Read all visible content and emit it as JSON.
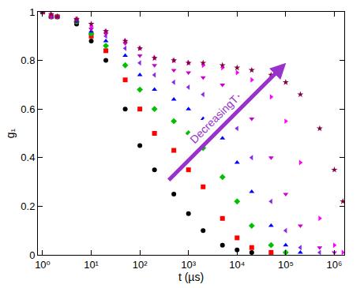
{
  "chart_data": {
    "type": "scatter",
    "log": "x",
    "grid": false,
    "x_label": "t (µs)",
    "y_label": "g₁",
    "annotations": [
      "DecreasingT"
    ],
    "xlim": [
      0.8,
      1600000
    ],
    "ylim": [
      0,
      1
    ],
    "xticks": [
      {
        "value": 1,
        "label": "10⁰"
      },
      {
        "value": 10,
        "label": "10¹"
      },
      {
        "value": 100,
        "label": "10²"
      },
      {
        "value": 1000,
        "label": "10³"
      },
      {
        "value": 10000,
        "label": "10⁴"
      },
      {
        "value": 100000,
        "label": "10⁵"
      },
      {
        "value": 1000000,
        "label": "10⁶"
      }
    ],
    "yticks": [
      0,
      0.2,
      0.4,
      0.6,
      0.8,
      1
    ],
    "x": [
      1,
      1.5,
      2,
      5,
      10,
      20,
      50,
      100,
      200,
      500,
      1000,
      2000,
      5000,
      10000,
      20000,
      50000,
      100000,
      200000,
      500000,
      1000000,
      1500000
    ],
    "series": [
      {
        "color": "#000000",
        "marker": "circle",
        "values": [
          1,
          0.98,
          0.98,
          0.95,
          0.88,
          0.8,
          0.6,
          0.45,
          0.35,
          0.25,
          0.17,
          0.1,
          0.04,
          0.02,
          0.01,
          null,
          null,
          null,
          null,
          null,
          null
        ]
      },
      {
        "color": "#ff0000",
        "marker": "square",
        "values": [
          1,
          0.98,
          0.98,
          0.96,
          0.9,
          0.84,
          0.72,
          0.6,
          0.5,
          0.43,
          0.35,
          0.28,
          0.15,
          0.07,
          0.03,
          0.01,
          null,
          null,
          null,
          null,
          null
        ]
      },
      {
        "color": "#00c000",
        "marker": "diamond",
        "values": [
          1,
          0.98,
          0.98,
          0.96,
          0.91,
          0.86,
          0.78,
          0.68,
          0.6,
          0.55,
          0.5,
          0.44,
          0.32,
          0.22,
          0.12,
          0.04,
          0.01,
          null,
          null,
          null,
          null
        ]
      },
      {
        "color": "#0000ff",
        "marker": "triangle-up",
        "values": [
          1,
          0.98,
          0.98,
          0.96,
          0.92,
          0.88,
          0.82,
          0.74,
          0.68,
          0.64,
          0.6,
          0.56,
          0.48,
          0.38,
          0.26,
          0.12,
          0.04,
          0.01,
          null,
          null,
          null
        ]
      },
      {
        "color": "#8a2be2",
        "marker": "triangle-left",
        "values": [
          1,
          0.98,
          0.98,
          0.97,
          0.93,
          0.9,
          0.85,
          0.79,
          0.74,
          0.71,
          0.69,
          0.66,
          0.6,
          0.52,
          0.4,
          0.22,
          0.1,
          0.03,
          0.01,
          null,
          null
        ]
      },
      {
        "color": "#cc00cc",
        "marker": "triangle-down",
        "values": [
          1,
          0.98,
          0.98,
          0.97,
          0.93,
          0.91,
          0.87,
          0.82,
          0.78,
          0.76,
          0.75,
          0.73,
          0.7,
          0.65,
          0.56,
          0.4,
          0.25,
          0.12,
          0.03,
          0.01,
          null
        ]
      },
      {
        "color": "#ff00ff",
        "marker": "triangle-right",
        "values": [
          1,
          0.99,
          0.98,
          0.97,
          0.94,
          0.92,
          0.88,
          0.85,
          0.81,
          0.8,
          0.79,
          0.78,
          0.77,
          0.75,
          0.72,
          0.65,
          0.55,
          0.38,
          0.15,
          0.04,
          0.01
        ]
      },
      {
        "color": "#800040",
        "marker": "star",
        "values": [
          1,
          0.99,
          0.98,
          0.97,
          0.95,
          0.92,
          0.88,
          0.85,
          0.81,
          0.8,
          0.79,
          0.79,
          0.78,
          0.77,
          0.76,
          0.74,
          0.71,
          0.66,
          0.52,
          0.35,
          0.22
        ]
      }
    ]
  }
}
